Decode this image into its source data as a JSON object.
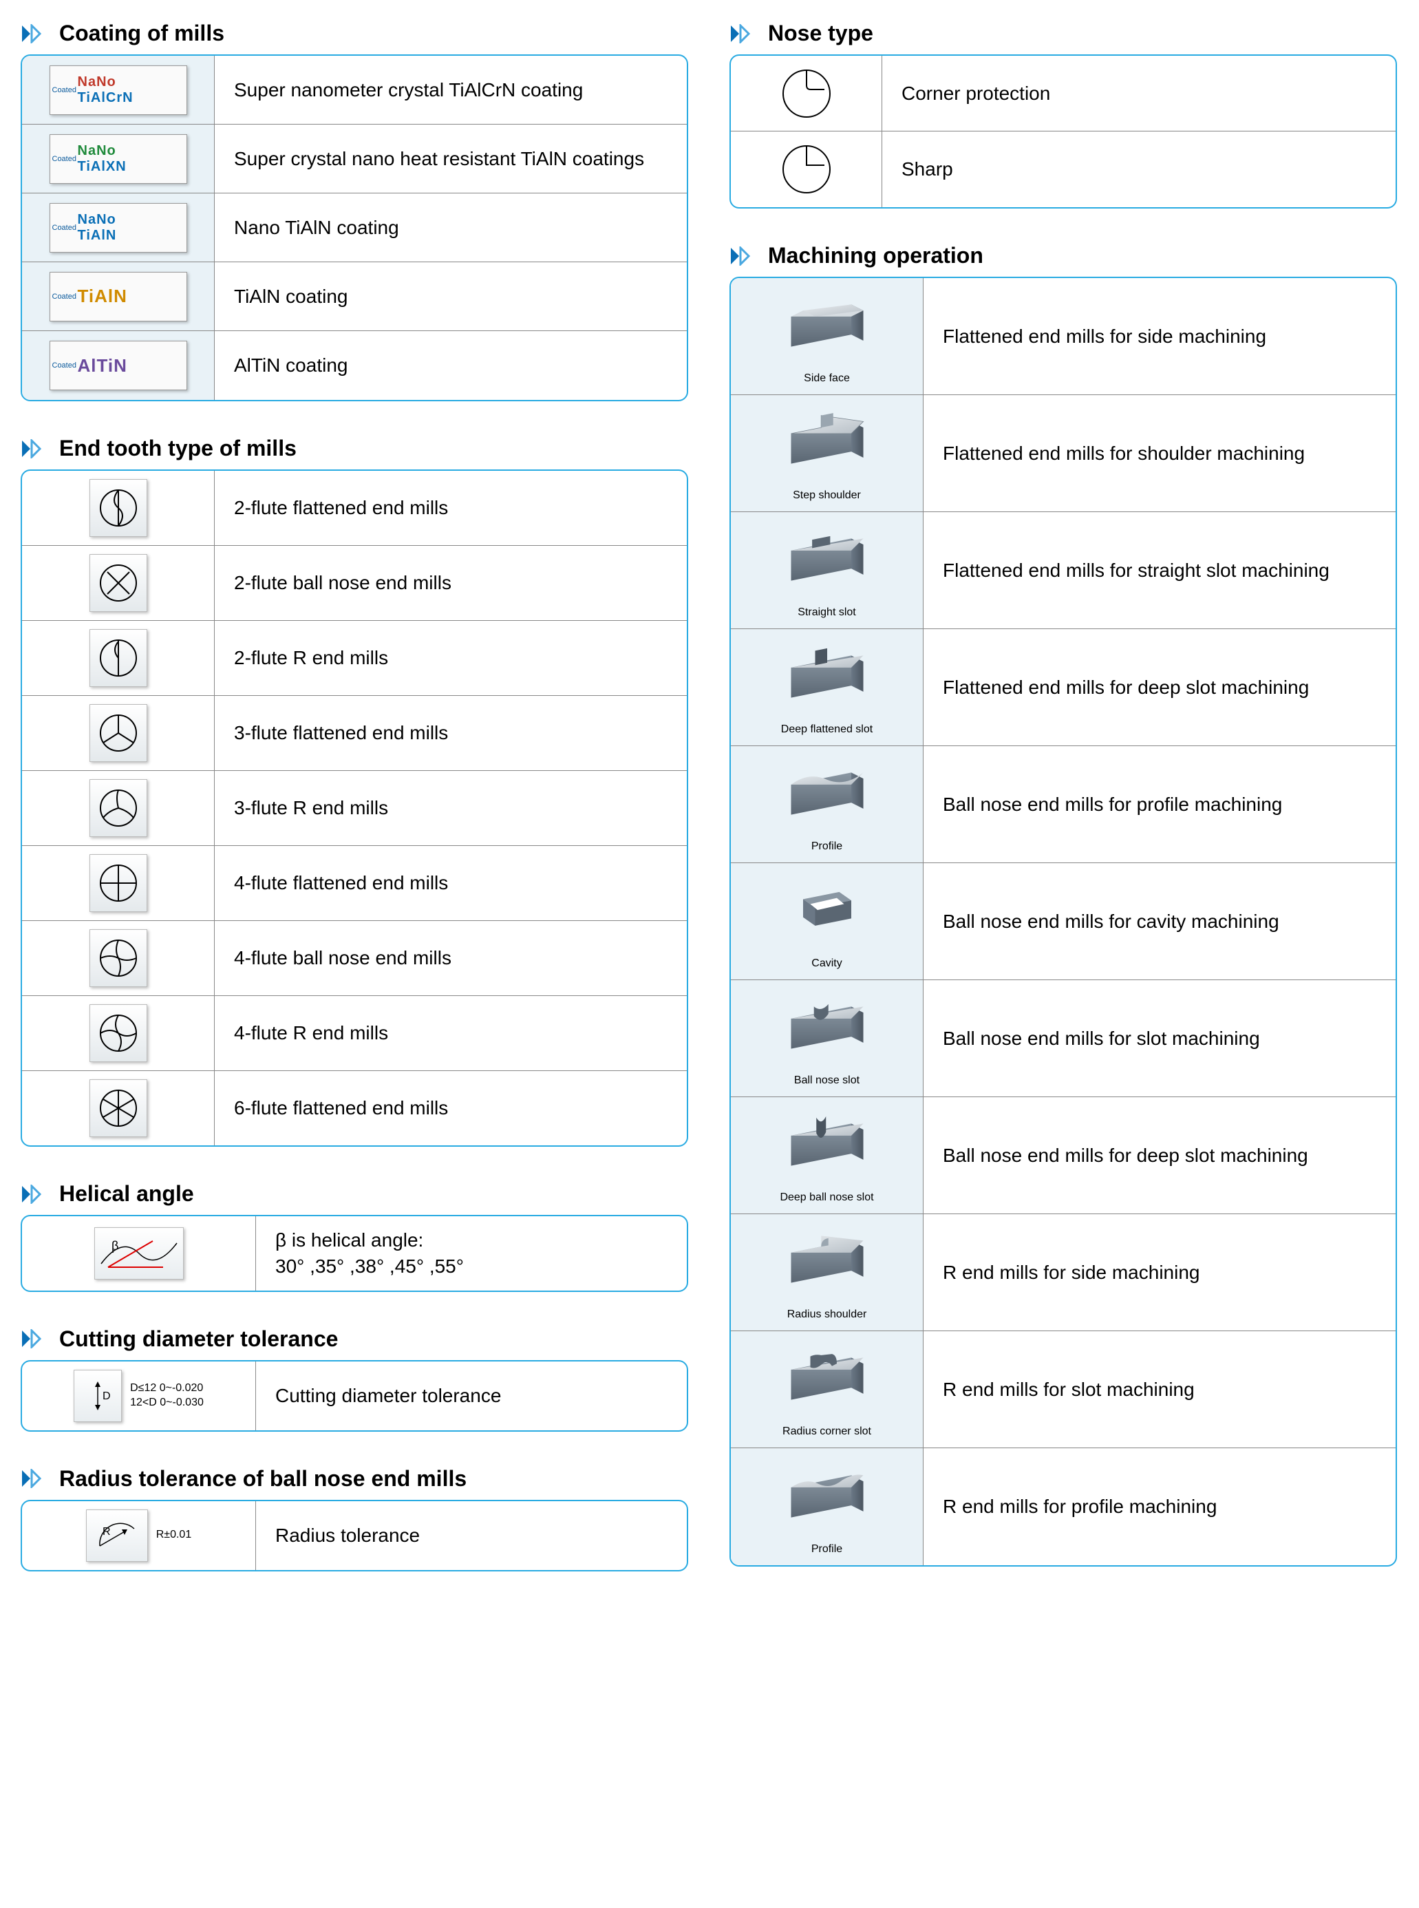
{
  "colors": {
    "border": "#29abe2",
    "divider": "#888888",
    "shaded_bg": "#e9f2f7",
    "chevron_blue": "#0a6fb6",
    "chevron_outline": "#4aa8e0"
  },
  "sections": {
    "coating": {
      "title": "Coating of mills",
      "rows": [
        {
          "badge_line1": "NaNo",
          "badge_line2": "TiAlCrN",
          "color1": "#c0392b",
          "color2": "#0a6fb6",
          "desc": "Super nanometer crystal TiAlCrN coating"
        },
        {
          "badge_line1": "NaNo",
          "badge_line2": "TiAlXN",
          "color1": "#1f8a3b",
          "color2": "#0a6fb6",
          "desc": "Super crystal nano heat resistant TiAlN coatings"
        },
        {
          "badge_line1": "NaNo",
          "badge_line2": "TiAlN",
          "color1": "#0a6fb6",
          "color2": "#0a6fb6",
          "desc": "Nano TiAlN coating"
        },
        {
          "badge_line1": "TiAlN",
          "badge_line2": "",
          "color1": "#d08b00",
          "color2": "",
          "desc": "TiAlN coating"
        },
        {
          "badge_line1": "AlTiN",
          "badge_line2": "",
          "color1": "#6a4a9c",
          "color2": "",
          "desc": "AlTiN coating"
        }
      ],
      "side_label": "Coated"
    },
    "end_tooth": {
      "title": "End tooth type of mills",
      "rows": [
        {
          "desc": "2-flute flattened end mills"
        },
        {
          "desc": "2-flute ball nose end mills"
        },
        {
          "desc": "2-flute R end mills"
        },
        {
          "desc": "3-flute flattened end mills"
        },
        {
          "desc": "3-flute R end mills"
        },
        {
          "desc": "4-flute flattened end mills"
        },
        {
          "desc": "4-flute ball nose end mills"
        },
        {
          "desc": "4-flute R end mills"
        },
        {
          "desc": "6-flute flattened end mills"
        }
      ]
    },
    "helical": {
      "title": "Helical angle",
      "label": "β",
      "desc": "β is helical angle:\n30° ,35° ,38° ,45° ,55°"
    },
    "cutting_tol": {
      "title": "Cutting diameter tolerance",
      "box_label": "D",
      "tol_text": "D≤12  0~-0.020\n12<D  0~-0.030",
      "desc": "Cutting diameter tolerance"
    },
    "radius_tol": {
      "title": "Radius tolerance of ball nose end mills",
      "box_label": "R",
      "tol_text": "R±0.01",
      "desc": "Radius tolerance"
    },
    "nose": {
      "title": "Nose type",
      "rows": [
        {
          "desc": "Corner protection",
          "variant": "rounded"
        },
        {
          "desc": "Sharp",
          "variant": "sharp"
        }
      ]
    },
    "machining": {
      "title": "Machining operation",
      "rows": [
        {
          "caption": "Side face",
          "desc": "Flattened end mills for side machining",
          "shape": "sideface"
        },
        {
          "caption": "Step shoulder",
          "desc": "Flattened end mills for shoulder machining",
          "shape": "stepshoulder"
        },
        {
          "caption": "Straight slot",
          "desc": "Flattened end mills for straight slot machining",
          "shape": "straightslot"
        },
        {
          "caption": "Deep flattened slot",
          "desc": "Flattened end mills for deep slot machining",
          "shape": "deepflat"
        },
        {
          "caption": "Profile",
          "desc": "Ball nose end mills for profile machining",
          "shape": "profile"
        },
        {
          "caption": "Cavity",
          "desc": "Ball nose end mills for cavity machining",
          "shape": "cavity"
        },
        {
          "caption": "Ball nose slot",
          "desc": "Ball nose end mills for slot machining",
          "shape": "ballslot"
        },
        {
          "caption": "Deep ball nose slot",
          "desc": "Ball nose end mills for deep slot machining",
          "shape": "deepball"
        },
        {
          "caption": "Radius shoulder",
          "desc": "R end mills for side machining",
          "shape": "radshoulder"
        },
        {
          "caption": "Radius corner slot",
          "desc": "R end mills for slot machining",
          "shape": "radslot"
        },
        {
          "caption": "Profile",
          "desc": "R end mills for profile machining",
          "shape": "rprofile"
        }
      ]
    }
  }
}
